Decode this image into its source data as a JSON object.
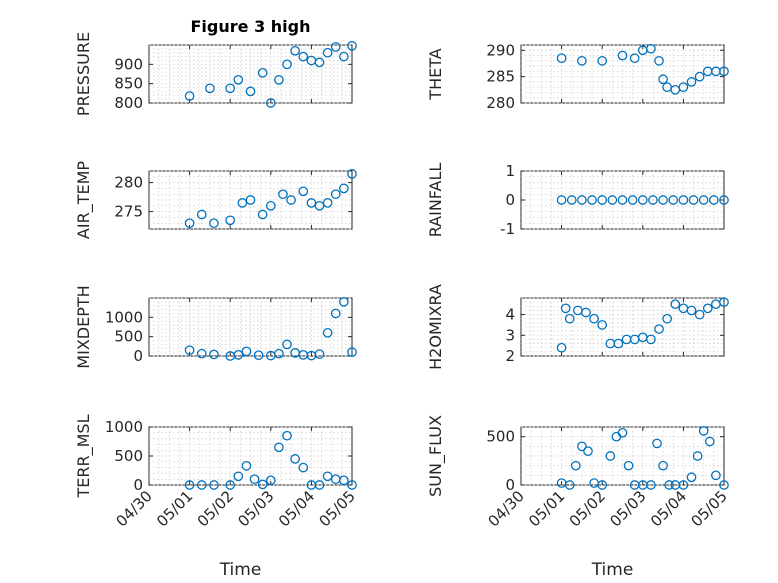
{
  "chart_data": [
    {
      "type": "scatter",
      "title": "Figure 3 high",
      "ylabel": "PRESSURE",
      "xlim": [
        "04/30",
        "05/05"
      ],
      "ylim": [
        800,
        950
      ],
      "yticks": [
        800,
        850,
        900
      ],
      "yticklabels": [
        "800",
        "850",
        "900"
      ],
      "series": [
        {
          "x": [
            1.0,
            1.5,
            2.0,
            2.2,
            2.5,
            2.8,
            3.0,
            3.2,
            3.4,
            3.6,
            3.8,
            4.0,
            4.2,
            4.4,
            4.6,
            4.8,
            5.0
          ],
          "y": [
            818,
            838,
            838,
            860,
            830,
            878,
            800,
            860,
            900,
            935,
            920,
            910,
            905,
            930,
            945,
            920,
            948
          ]
        }
      ]
    },
    {
      "type": "scatter",
      "title": "",
      "ylabel": "THETA",
      "xlim": [
        "04/30",
        "05/05"
      ],
      "ylim": [
        280,
        291
      ],
      "yticks": [
        280,
        285,
        290
      ],
      "yticklabels": [
        "280",
        "285",
        "290"
      ],
      "series": [
        {
          "x": [
            1.0,
            1.5,
            2.0,
            2.5,
            2.8,
            3.0,
            3.2,
            3.4,
            3.5,
            3.6,
            3.8,
            4.0,
            4.2,
            4.4,
            4.6,
            4.8,
            5.0
          ],
          "y": [
            288.5,
            288.0,
            288.0,
            289.0,
            288.5,
            290.0,
            290.3,
            288.0,
            284.5,
            283.0,
            282.5,
            283.0,
            284.0,
            285.0,
            286.0,
            286.0,
            286.0
          ]
        }
      ]
    },
    {
      "type": "scatter",
      "title": "",
      "ylabel": "AIR_TEMP",
      "xlim": [
        "04/30",
        "05/05"
      ],
      "ylim": [
        272,
        282
      ],
      "yticks": [
        275,
        280
      ],
      "yticklabels": [
        "275",
        "280"
      ],
      "series": [
        {
          "x": [
            1.0,
            1.3,
            1.6,
            2.0,
            2.3,
            2.5,
            2.8,
            3.0,
            3.3,
            3.5,
            3.8,
            4.0,
            4.2,
            4.4,
            4.6,
            4.8,
            5.0
          ],
          "y": [
            273.0,
            274.5,
            273.0,
            273.5,
            276.5,
            277.0,
            274.5,
            276.0,
            278.0,
            277.0,
            278.5,
            276.5,
            276.0,
            276.5,
            278.0,
            279.0,
            281.5
          ]
        }
      ]
    },
    {
      "type": "scatter",
      "title": "",
      "ylabel": "RAINFALL",
      "xlim": [
        "04/30",
        "05/05"
      ],
      "ylim": [
        -1,
        1
      ],
      "yticks": [
        -1,
        0,
        1
      ],
      "yticklabels": [
        "-1",
        "0",
        "1"
      ],
      "series": [
        {
          "x": [
            1.0,
            1.25,
            1.5,
            1.75,
            2.0,
            2.25,
            2.5,
            2.75,
            3.0,
            3.25,
            3.5,
            3.75,
            4.0,
            4.25,
            4.5,
            4.75,
            5.0
          ],
          "y": [
            0,
            0,
            0,
            0,
            0,
            0,
            0,
            0,
            0,
            0,
            0,
            0,
            0,
            0,
            0,
            0,
            0
          ]
        }
      ]
    },
    {
      "type": "scatter",
      "title": "",
      "ylabel": "MIXDEPTH",
      "xlim": [
        "04/30",
        "05/05"
      ],
      "ylim": [
        0,
        1500
      ],
      "yticks": [
        0,
        500,
        1000
      ],
      "yticklabels": [
        "0",
        "500",
        "1000"
      ],
      "series": [
        {
          "x": [
            1.0,
            1.3,
            1.6,
            2.0,
            2.2,
            2.4,
            2.7,
            3.0,
            3.2,
            3.4,
            3.6,
            3.8,
            4.0,
            4.2,
            4.4,
            4.6,
            4.8,
            5.0
          ],
          "y": [
            150,
            60,
            40,
            0,
            30,
            120,
            20,
            10,
            60,
            300,
            80,
            30,
            10,
            50,
            600,
            1100,
            1400,
            100
          ]
        }
      ]
    },
    {
      "type": "scatter",
      "title": "",
      "ylabel": "H2OMIXRA",
      "xlim": [
        "04/30",
        "05/05"
      ],
      "ylim": [
        2,
        4.8
      ],
      "yticks": [
        2,
        3,
        4
      ],
      "yticklabels": [
        "2",
        "3",
        "4"
      ],
      "series": [
        {
          "x": [
            1.0,
            1.1,
            1.2,
            1.4,
            1.6,
            1.8,
            2.0,
            2.2,
            2.4,
            2.6,
            2.8,
            3.0,
            3.2,
            3.4,
            3.6,
            3.8,
            4.0,
            4.2,
            4.4,
            4.6,
            4.8,
            5.0
          ],
          "y": [
            2.4,
            4.3,
            3.8,
            4.2,
            4.1,
            3.8,
            3.5,
            2.6,
            2.6,
            2.8,
            2.8,
            2.9,
            2.8,
            3.3,
            3.8,
            4.5,
            4.3,
            4.2,
            4.0,
            4.3,
            4.5,
            4.6
          ]
        }
      ]
    },
    {
      "type": "scatter",
      "title": "",
      "ylabel": "TERR_MSL",
      "xlim": [
        "04/30",
        "05/05"
      ],
      "ylim": [
        0,
        1000
      ],
      "yticks": [
        0,
        500,
        1000
      ],
      "yticklabels": [
        "0",
        "500",
        "1000"
      ],
      "series": [
        {
          "x": [
            1.0,
            1.3,
            1.6,
            2.0,
            2.2,
            2.4,
            2.6,
            2.8,
            3.0,
            3.2,
            3.4,
            3.6,
            3.8,
            4.0,
            4.2,
            4.4,
            4.6,
            4.8,
            5.0
          ],
          "y": [
            0,
            0,
            0,
            0,
            150,
            330,
            100,
            10,
            80,
            650,
            850,
            450,
            300,
            0,
            0,
            150,
            100,
            80,
            0
          ]
        }
      ]
    },
    {
      "type": "scatter",
      "title": "",
      "ylabel": "SUN_FLUX",
      "xlim": [
        "04/30",
        "05/05"
      ],
      "ylim": [
        0,
        600
      ],
      "yticks": [
        0,
        500
      ],
      "yticklabels": [
        "0",
        "500"
      ],
      "series": [
        {
          "x": [
            1.0,
            1.2,
            1.35,
            1.5,
            1.65,
            1.8,
            2.0,
            2.2,
            2.35,
            2.5,
            2.65,
            2.8,
            3.0,
            3.2,
            3.35,
            3.5,
            3.65,
            3.8,
            4.0,
            4.2,
            4.35,
            4.5,
            4.65,
            4.8,
            5.0
          ],
          "y": [
            20,
            0,
            200,
            400,
            350,
            20,
            0,
            300,
            500,
            540,
            200,
            0,
            0,
            0,
            430,
            200,
            0,
            0,
            0,
            80,
            300,
            560,
            450,
            100,
            0
          ]
        }
      ]
    }
  ],
  "x_axis": {
    "label": "Time",
    "ticks": [
      0,
      1,
      2,
      3,
      4,
      5
    ],
    "ticklabels": [
      "04/30",
      "05/01",
      "05/02",
      "05/03",
      "05/04",
      "05/05"
    ]
  }
}
